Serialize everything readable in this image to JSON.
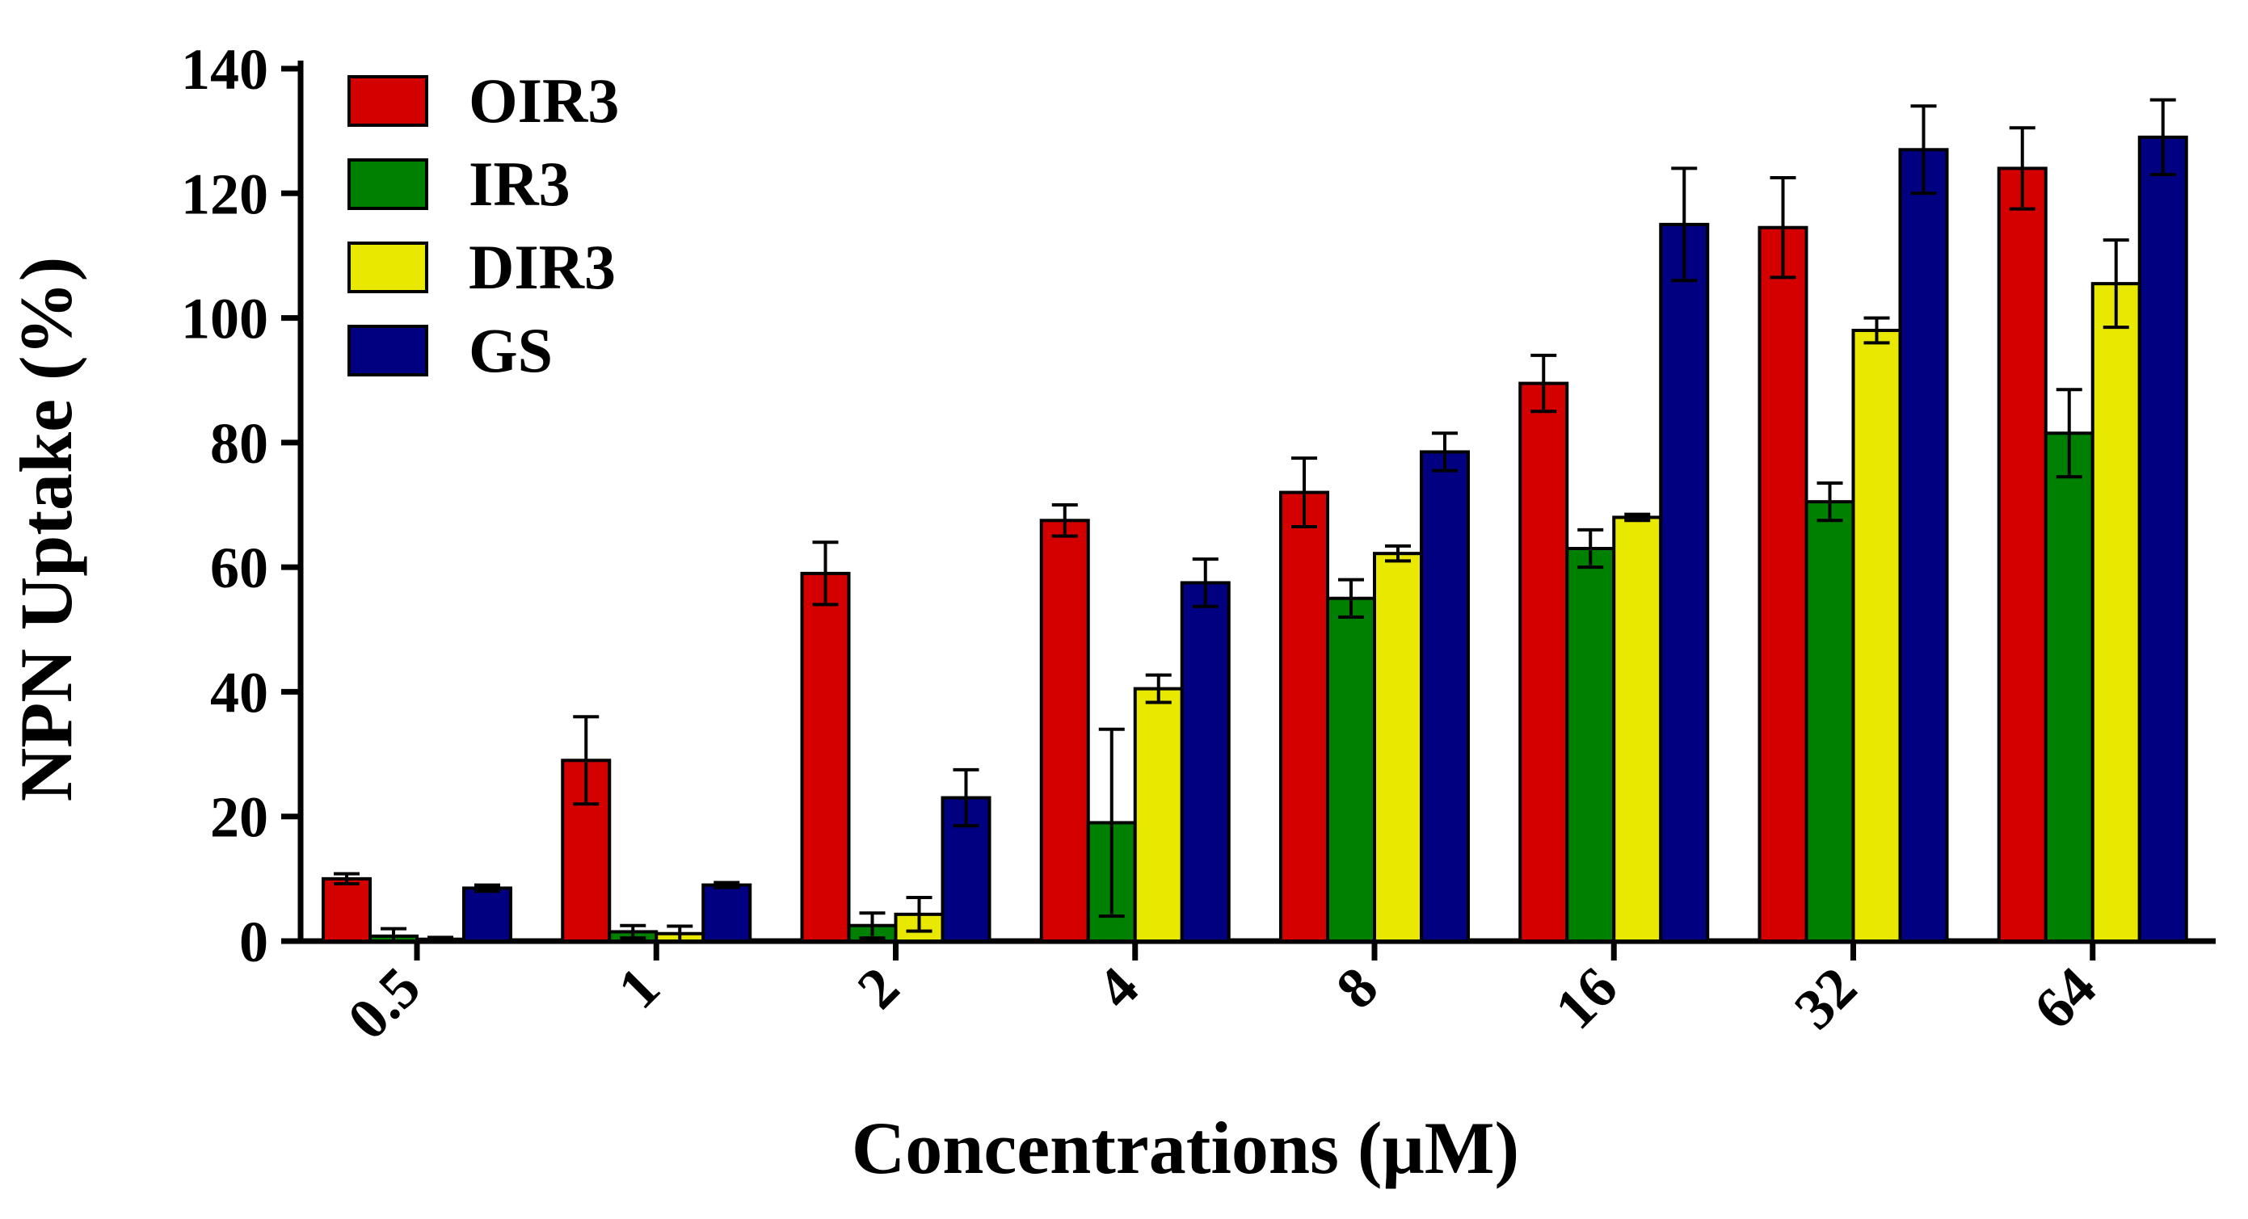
{
  "chart_data": {
    "type": "bar",
    "title": "",
    "xlabel": "Concentrations (μM)",
    "ylabel": "NPN Uptake (%)",
    "ylim": [
      0,
      140
    ],
    "yticks": [
      "0",
      "20",
      "40",
      "60",
      "80",
      "100",
      "120",
      "140"
    ],
    "categories": [
      "0.5",
      "1",
      "2",
      "4",
      "8",
      "16",
      "32",
      "64"
    ],
    "legend_position": "top-left",
    "series": [
      {
        "name": "OIR3",
        "color": "#D40000",
        "values": [
          10,
          29,
          59,
          67.5,
          72,
          89.5,
          114.5,
          124
        ],
        "errors": [
          0.8,
          7,
          5,
          2.5,
          5.5,
          4.5,
          8,
          6.5
        ]
      },
      {
        "name": "IR3",
        "color": "#008000",
        "values": [
          0.8,
          1.5,
          2.5,
          19,
          55,
          63,
          70.5,
          81.5
        ],
        "errors": [
          1.2,
          1,
          2,
          15,
          3,
          3,
          3,
          7
        ]
      },
      {
        "name": "DIR3",
        "color": "#E8E800",
        "values": [
          0.3,
          1.2,
          4.3,
          40.5,
          62.2,
          68,
          98,
          105.5
        ],
        "errors": [
          0.3,
          1.2,
          2.7,
          2.2,
          1.2,
          0.5,
          2,
          7
        ]
      },
      {
        "name": "GS",
        "color": "#000080",
        "values": [
          8.5,
          9,
          23,
          57.5,
          78.5,
          115,
          127,
          129
        ],
        "errors": [
          0.5,
          0.4,
          4.5,
          3.8,
          3,
          9,
          7,
          6
        ]
      }
    ]
  }
}
